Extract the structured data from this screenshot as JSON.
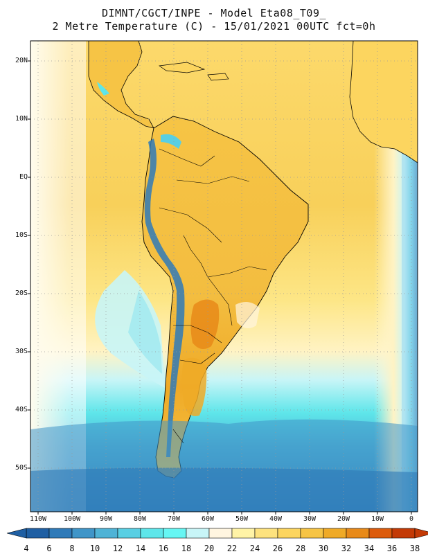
{
  "title": {
    "line1": "DIMNT/CGCT/INPE -  Model Eta08_T09_",
    "line2": "2 Metre Temperature (C) -  15/01/2021 00UTC fct=0h"
  },
  "axes": {
    "lat_labels": [
      "20N",
      "10N",
      "EQ",
      "10S",
      "20S",
      "30S",
      "40S",
      "50S"
    ],
    "lon_labels": [
      "110W",
      "100W",
      "90W",
      "80W",
      "70W",
      "60W",
      "50W",
      "40W",
      "30W",
      "20W",
      "10W",
      "0"
    ]
  },
  "colorbar": {
    "values": [
      "4",
      "6",
      "8",
      "10",
      "12",
      "14",
      "16",
      "18",
      "20",
      "22",
      "24",
      "26",
      "28",
      "30",
      "32",
      "34",
      "36",
      "38"
    ],
    "colors": [
      "#1f5fa3",
      "#2f7ab8",
      "#3f95c8",
      "#4fb3d6",
      "#59cfe3",
      "#5ee6ea",
      "#66f6f3",
      "#c8f5f7",
      "#fff5e0",
      "#fff3a6",
      "#fde27e",
      "#fcd55f",
      "#f6c445",
      "#efaa27",
      "#e88a19",
      "#dc5b0c",
      "#c33a06"
    ]
  },
  "colors": {
    "land_line": "#000000",
    "grid": "#9a9a9a"
  }
}
